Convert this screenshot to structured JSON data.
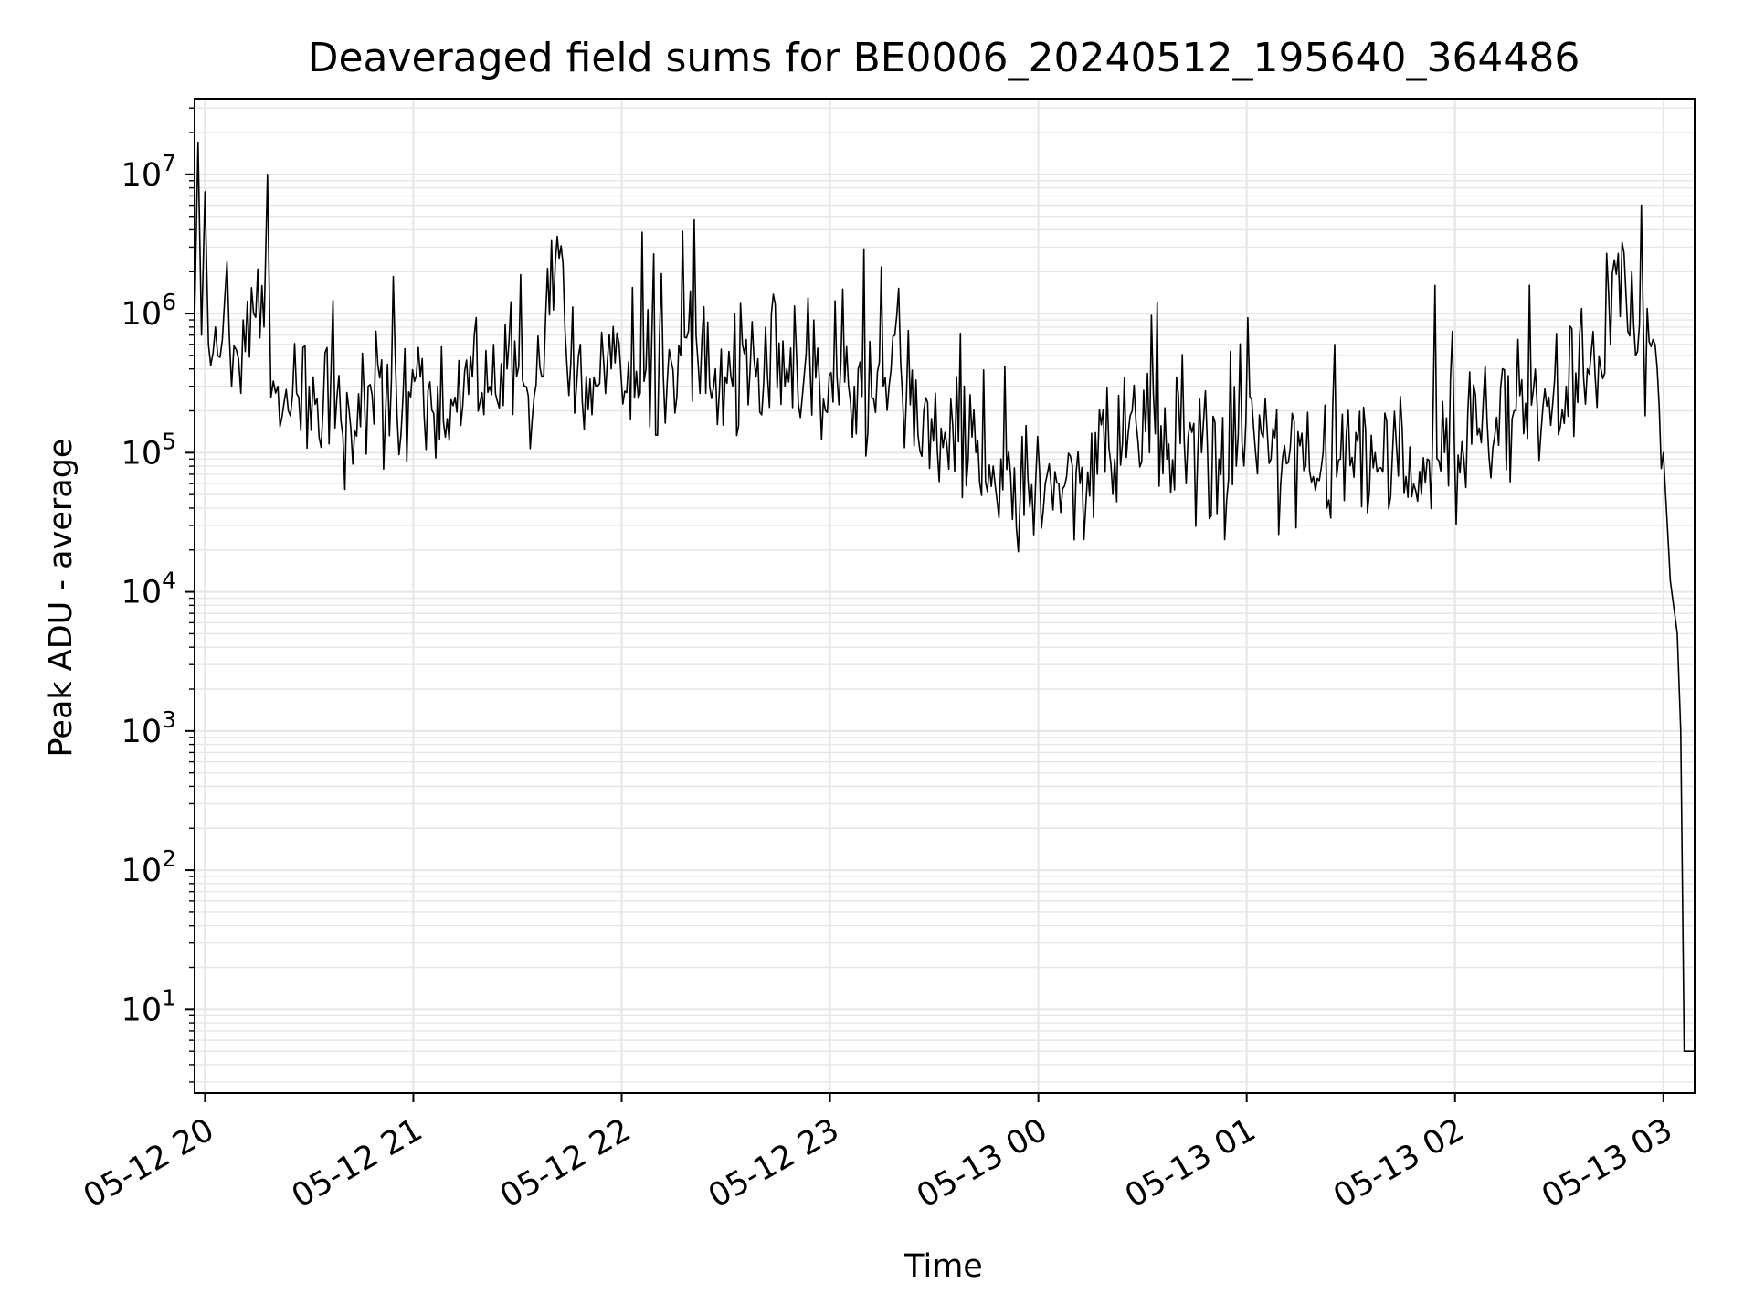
{
  "chart_data": {
    "type": "line",
    "title": "Deaveraged field sums for BE0006_20240512_195640_364486",
    "xlabel": "Time",
    "ylabel": "Peak ADU - average",
    "y_scale": "log",
    "grid": true,
    "legend": "none",
    "colors": {
      "line": "#000000",
      "grid": "#e6e6e6",
      "axes": "#000000",
      "background": "#ffffff"
    },
    "xlim": [
      "2024-05-12 19:57",
      "2024-05-13 03:09"
    ],
    "ylim": [
      2.5,
      35000000
    ],
    "x_ticks": [
      {
        "value": "2024-05-12 20:00",
        "label": "05-12 20"
      },
      {
        "value": "2024-05-12 21:00",
        "label": "05-12 21"
      },
      {
        "value": "2024-05-12 22:00",
        "label": "05-12 22"
      },
      {
        "value": "2024-05-12 23:00",
        "label": "05-12 23"
      },
      {
        "value": "2024-05-13 00:00",
        "label": "05-13 00"
      },
      {
        "value": "2024-05-13 01:00",
        "label": "05-13 01"
      },
      {
        "value": "2024-05-13 02:00",
        "label": "05-13 02"
      },
      {
        "value": "2024-05-13 03:00",
        "label": "05-13 03"
      }
    ],
    "y_ticks": [
      {
        "value": 10,
        "base": "10",
        "exp": "1"
      },
      {
        "value": 100,
        "base": "10",
        "exp": "2"
      },
      {
        "value": 1000,
        "base": "10",
        "exp": "3"
      },
      {
        "value": 10000,
        "base": "10",
        "exp": "4"
      },
      {
        "value": 100000,
        "base": "10",
        "exp": "5"
      },
      {
        "value": 1000000,
        "base": "10",
        "exp": "6"
      },
      {
        "value": 10000000,
        "base": "10",
        "exp": "7"
      }
    ],
    "series": [
      {
        "x": [
          "2024-05-12 19:57",
          "2024-05-12 19:58",
          "2024-05-12 19:59",
          "2024-05-12 20:00",
          "2024-05-12 20:01",
          "2024-05-12 20:03",
          "2024-05-12 20:05",
          "2024-05-12 20:07",
          "2024-05-12 20:09",
          "2024-05-12 20:11",
          "2024-05-12 20:14",
          "2024-05-12 20:17",
          "2024-05-12 20:18",
          "2024-05-12 20:19",
          "2024-05-12 20:21",
          "2024-05-12 20:24",
          "2024-05-12 20:27",
          "2024-05-12 20:30",
          "2024-05-12 20:34",
          "2024-05-12 20:38",
          "2024-05-12 20:42",
          "2024-05-12 20:47",
          "2024-05-12 20:52",
          "2024-05-12 20:57",
          "2024-05-12 21:02",
          "2024-05-12 21:07",
          "2024-05-12 21:12",
          "2024-05-12 21:17",
          "2024-05-12 21:22",
          "2024-05-12 21:27",
          "2024-05-12 21:32",
          "2024-05-12 21:37",
          "2024-05-12 21:42",
          "2024-05-12 21:47",
          "2024-05-12 21:52",
          "2024-05-12 21:57",
          "2024-05-12 22:02",
          "2024-05-12 22:07",
          "2024-05-12 22:12",
          "2024-05-12 22:17",
          "2024-05-12 22:22",
          "2024-05-12 22:27",
          "2024-05-12 22:32",
          "2024-05-12 22:37",
          "2024-05-12 22:42",
          "2024-05-12 22:47",
          "2024-05-12 22:52",
          "2024-05-12 22:57",
          "2024-05-12 23:02",
          "2024-05-12 23:07",
          "2024-05-12 23:12",
          "2024-05-12 23:17",
          "2024-05-12 23:22",
          "2024-05-12 23:27",
          "2024-05-12 23:32",
          "2024-05-12 23:37",
          "2024-05-12 23:42",
          "2024-05-12 23:47",
          "2024-05-12 23:52",
          "2024-05-12 23:57",
          "2024-05-13 00:02",
          "2024-05-13 00:07",
          "2024-05-13 00:12",
          "2024-05-13 00:17",
          "2024-05-13 00:22",
          "2024-05-13 00:27",
          "2024-05-13 00:32",
          "2024-05-13 00:37",
          "2024-05-13 00:42",
          "2024-05-13 00:47",
          "2024-05-13 00:52",
          "2024-05-13 00:57",
          "2024-05-13 01:02",
          "2024-05-13 01:07",
          "2024-05-13 01:12",
          "2024-05-13 01:17",
          "2024-05-13 01:22",
          "2024-05-13 01:27",
          "2024-05-13 01:32",
          "2024-05-13 01:37",
          "2024-05-13 01:42",
          "2024-05-13 01:47",
          "2024-05-13 01:52",
          "2024-05-13 01:57",
          "2024-05-13 02:02",
          "2024-05-13 02:07",
          "2024-05-13 02:12",
          "2024-05-13 02:17",
          "2024-05-13 02:22",
          "2024-05-13 02:27",
          "2024-05-13 02:32",
          "2024-05-13 02:37",
          "2024-05-13 02:42",
          "2024-05-13 02:47",
          "2024-05-13 02:52",
          "2024-05-13 02:57",
          "2024-05-13 03:00",
          "2024-05-13 03:02",
          "2024-05-13 03:04",
          "2024-05-13 03:05",
          "2024-05-13 03:06",
          "2024-05-13 03:09"
        ],
        "y": [
          900000,
          17000000,
          700000,
          7500000,
          600000,
          800000,
          650000,
          700000,
          550000,
          900000,
          1000000,
          800000,
          10000000,
          250000,
          300000,
          200000,
          250000,
          300000,
          200000,
          250000,
          150000,
          300000,
          200000,
          250000,
          350000,
          300000,
          250000,
          350000,
          300000,
          400000,
          300000,
          350000,
          2500000,
          300000,
          350000,
          400000,
          450000,
          400000,
          350000,
          500000,
          450000,
          400000,
          300000,
          400000,
          350000,
          300000,
          250000,
          300000,
          350000,
          300000,
          250000,
          300000,
          250000,
          200000,
          150000,
          120000,
          100000,
          80000,
          70000,
          65000,
          60000,
          55000,
          60000,
          70000,
          90000,
          200000,
          100000,
          90000,
          120000,
          100000,
          90000,
          80000,
          150000,
          90000,
          85000,
          80000,
          100000,
          90000,
          120000,
          100000,
          100000,
          110000,
          90000,
          100000,
          120000,
          150000,
          180000,
          200000,
          220000,
          250000,
          300000,
          350000,
          400000,
          2700000,
          500000,
          650000,
          100000,
          12000,
          5000,
          1000,
          5,
          5
        ]
      }
    ]
  }
}
